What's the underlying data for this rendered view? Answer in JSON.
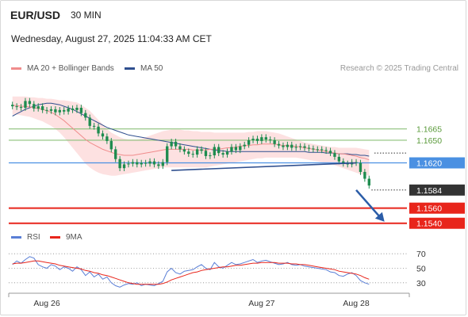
{
  "header": {
    "symbol": "EUR/USD",
    "timeframe": "30 MIN",
    "datetime": "Wednesday, August 27, 2025 11:04:33 AM CET"
  },
  "legend": {
    "ma20_label": "MA 20 + Bollinger Bands",
    "ma50_label": "MA 50",
    "credit": "Research © 2025 Trading Central",
    "rsi_label": "RSI",
    "rsi_ma_label": "9MA"
  },
  "colors": {
    "candle": "#1e8c4f",
    "ma20": "#f08c8c",
    "ma50": "#2f4f8f",
    "bands": "#fcd9d9",
    "pivot": "#4a90e2",
    "support": "#e8251b",
    "resistance": "#8cc07a",
    "rsi": "#5a7fd6",
    "rsi_ma": "#e8251b",
    "arrow": "#2b5da8"
  },
  "chart_data": [
    {
      "type": "candlestick",
      "title": "EUR/USD 30 MIN",
      "ylim": [
        1.1525,
        1.1735
      ],
      "x_ticks": [
        "Aug 26",
        "Aug 27",
        "Aug 28"
      ],
      "x_tick_positions": [
        8,
        58,
        80
      ],
      "x_count": 84,
      "close": [
        1.1695,
        1.1694,
        1.1693,
        1.1702,
        1.1698,
        1.1692,
        1.1695,
        1.169,
        1.1689,
        1.1691,
        1.1687,
        1.169,
        1.1688,
        1.1692,
        1.169,
        1.1693,
        1.1686,
        1.168,
        1.1669,
        1.1668,
        1.1659,
        1.1655,
        1.1649,
        1.1638,
        1.1625,
        1.1613,
        1.1618,
        1.1619,
        1.1621,
        1.1618,
        1.162,
        1.1619,
        1.1622,
        1.1618,
        1.1616,
        1.1621,
        1.1642,
        1.1648,
        1.1642,
        1.1638,
        1.1635,
        1.1632,
        1.1631,
        1.1638,
        1.1636,
        1.1629,
        1.163,
        1.1641,
        1.1633,
        1.1631,
        1.1635,
        1.1641,
        1.1637,
        1.1642,
        1.1644,
        1.165,
        1.1652,
        1.1649,
        1.1654,
        1.1651,
        1.165,
        1.1645,
        1.1643,
        1.1641,
        1.1644,
        1.164,
        1.1641,
        1.1642,
        1.164,
        1.1639,
        1.1638,
        1.1638,
        1.1637,
        1.1636,
        1.1633,
        1.1628,
        1.1622,
        1.1619,
        1.1618,
        1.1621,
        1.162,
        1.1608,
        1.1599,
        1.159
      ],
      "ma20": [
        1.1696,
        1.1696,
        1.1695,
        1.1695,
        1.1694,
        1.1693,
        1.1692,
        1.1691,
        1.1689,
        1.1687,
        1.1684,
        1.168,
        1.1676,
        1.1671,
        1.1666,
        1.1661,
        1.1656,
        1.1651,
        1.1647,
        1.1644,
        1.1641,
        1.1638,
        1.1636,
        1.1634,
        1.1632,
        1.1631,
        1.163,
        1.163,
        1.163,
        1.1631,
        1.1632,
        1.1633,
        1.1634,
        1.1635,
        1.1636,
        1.1637,
        1.1638,
        1.1638,
        1.1638,
        1.1638,
        1.1638,
        1.1638,
        1.1637,
        1.1637,
        1.1637,
        1.1637,
        1.1638,
        1.1638,
        1.1638,
        1.1639,
        1.164,
        1.164,
        1.1641,
        1.1642,
        1.1643,
        1.1643,
        1.1644,
        1.1644,
        1.1645,
        1.1645,
        1.1645,
        1.1645,
        1.1644,
        1.1643,
        1.1643,
        1.1642,
        1.1642,
        1.1641,
        1.164,
        1.1639,
        1.1638,
        1.1637,
        1.1636,
        1.1635,
        1.1634,
        1.1633,
        1.1632,
        1.1632,
        1.1631,
        1.163,
        1.1629,
        1.1627,
        1.1626,
        1.1624
      ],
      "bollinger_upper": [
        1.1708,
        1.1708,
        1.1708,
        1.1708,
        1.1707,
        1.1707,
        1.1706,
        1.1706,
        1.1705,
        1.1705,
        1.1704,
        1.1703,
        1.1703,
        1.1702,
        1.1701,
        1.17,
        1.1697,
        1.1693,
        1.1689,
        1.1683,
        1.1677,
        1.1671,
        1.1665,
        1.166,
        1.1657,
        1.1654,
        1.1652,
        1.1651,
        1.1651,
        1.1651,
        1.1652,
        1.1654,
        1.1656,
        1.1658,
        1.166,
        1.1662,
        1.1663,
        1.1664,
        1.1664,
        1.1664,
        1.1663,
        1.1663,
        1.1662,
        1.1662,
        1.1661,
        1.1661,
        1.1661,
        1.166,
        1.166,
        1.166,
        1.166,
        1.166,
        1.166,
        1.166,
        1.166,
        1.1661,
        1.1661,
        1.1662,
        1.1662,
        1.1662,
        1.1661,
        1.166,
        1.1659,
        1.1657,
        1.1655,
        1.1653,
        1.1651,
        1.1649,
        1.1647,
        1.1646,
        1.1645,
        1.1644,
        1.1643,
        1.1642,
        1.1641,
        1.1641,
        1.164,
        1.164,
        1.164,
        1.164,
        1.164,
        1.1639,
        1.1638,
        1.1637
      ],
      "bollinger_lower": [
        1.1684,
        1.1684,
        1.1683,
        1.1682,
        1.1681,
        1.1679,
        1.1677,
        1.1675,
        1.1672,
        1.1669,
        1.1665,
        1.166,
        1.1654,
        1.1647,
        1.164,
        1.1633,
        1.1626,
        1.1619,
        1.1614,
        1.161,
        1.1607,
        1.1605,
        1.1604,
        1.1603,
        1.1603,
        1.1604,
        1.1605,
        1.1606,
        1.1607,
        1.1608,
        1.1609,
        1.161,
        1.1611,
        1.1612,
        1.1613,
        1.1614,
        1.1614,
        1.1614,
        1.1614,
        1.1614,
        1.1614,
        1.1614,
        1.1614,
        1.1614,
        1.1614,
        1.1614,
        1.1615,
        1.1616,
        1.1617,
        1.1618,
        1.1619,
        1.162,
        1.1621,
        1.1622,
        1.1623,
        1.1624,
        1.1625,
        1.1626,
        1.1626,
        1.1627,
        1.1627,
        1.1627,
        1.1627,
        1.1627,
        1.1627,
        1.1627,
        1.1627,
        1.1626,
        1.1625,
        1.1624,
        1.1623,
        1.1622,
        1.1621,
        1.162,
        1.1619,
        1.1617,
        1.1615,
        1.1613,
        1.1611,
        1.1609,
        1.1607,
        1.1605,
        1.1604,
        1.1603
      ],
      "ma50": [
        1.1682,
        1.1685,
        1.1688,
        1.1691,
        1.1693,
        1.1695,
        1.1697,
        1.1698,
        1.1699,
        1.1699,
        1.1698,
        1.1697,
        1.1695,
        1.1693,
        1.1691,
        1.1688,
        1.1685,
        1.1682,
        1.1679,
        1.1676,
        1.1673,
        1.167,
        1.1667,
        1.1665,
        1.1663,
        1.1661,
        1.1659,
        1.1657,
        1.1656,
        1.1655,
        1.1654,
        1.1653,
        1.1652,
        1.1651,
        1.165,
        1.1649,
        1.1648,
        1.1647,
        1.1646,
        1.1645,
        1.1644,
        1.1643,
        1.1642,
        1.1641,
        1.164,
        1.1639,
        1.1638,
        1.1637,
        1.1636,
        1.1636,
        1.1635,
        1.1635,
        1.1635,
        1.1635,
        1.1635,
        1.1635,
        1.1635,
        1.1635,
        1.1635,
        1.1635,
        1.1635,
        1.1635,
        1.1635,
        1.1635,
        1.1635,
        1.1635,
        1.1635,
        1.1635,
        1.1635,
        1.1634,
        1.1634,
        1.1634,
        1.1634,
        1.1633,
        1.1633,
        1.1633,
        1.1632,
        1.1632,
        1.1632,
        1.1631,
        1.1631,
        1.163,
        1.163,
        1.1629
      ],
      "levels": [
        {
          "label": "1.1665",
          "value": 1.1665,
          "role": "resistance"
        },
        {
          "label": "1.1650",
          "value": 1.165,
          "role": "resistance"
        },
        {
          "label": "1.1620",
          "value": 1.162,
          "role": "pivot"
        },
        {
          "label": "1.1584",
          "value": 1.1584,
          "role": "last_price"
        },
        {
          "label": "1.1560",
          "value": 1.156,
          "role": "support"
        },
        {
          "label": "1.1540",
          "value": 1.154,
          "role": "support"
        }
      ],
      "trendline": {
        "from": [
          37,
          1.161
        ],
        "to": [
          80,
          1.162
        ]
      },
      "projection_arrow": {
        "from": [
          80,
          1.1584
        ],
        "to": [
          84,
          1.1542
        ]
      }
    },
    {
      "type": "line",
      "series_names": [
        "RSI",
        "9MA"
      ],
      "ylim": [
        20,
        80
      ],
      "y_ticks": [
        70,
        50,
        30
      ],
      "x_count": 84,
      "rsi": [
        55,
        60,
        57,
        62,
        66,
        64,
        55,
        52,
        50,
        55,
        53,
        48,
        52,
        50,
        46,
        52,
        48,
        40,
        45,
        38,
        42,
        35,
        38,
        30,
        26,
        24,
        27,
        29,
        28,
        30,
        26,
        28,
        27,
        26,
        29,
        32,
        45,
        50,
        44,
        42,
        46,
        47,
        48,
        52,
        55,
        50,
        48,
        58,
        52,
        50,
        54,
        58,
        55,
        56,
        58,
        60,
        62,
        58,
        60,
        61,
        59,
        57,
        55,
        56,
        58,
        55,
        54,
        55,
        53,
        52,
        51,
        50,
        49,
        48,
        45,
        44,
        40,
        39,
        42,
        44,
        40,
        33,
        30,
        28
      ],
      "rsi_ma": [
        56,
        57,
        57,
        58,
        59,
        60,
        60,
        59,
        58,
        57,
        56,
        54,
        53,
        52,
        51,
        50,
        49,
        47,
        46,
        44,
        43,
        41,
        40,
        38,
        36,
        34,
        32,
        30,
        29,
        28,
        28,
        28,
        28,
        28,
        28,
        29,
        31,
        34,
        36,
        38,
        40,
        42,
        44,
        45,
        47,
        48,
        49,
        50,
        51,
        52,
        52,
        53,
        54,
        54,
        55,
        56,
        57,
        57,
        58,
        58,
        58,
        58,
        57,
        57,
        57,
        56,
        56,
        55,
        55,
        54,
        53,
        52,
        51,
        50,
        49,
        48,
        46,
        45,
        44,
        43,
        42,
        40,
        37,
        35
      ]
    }
  ]
}
